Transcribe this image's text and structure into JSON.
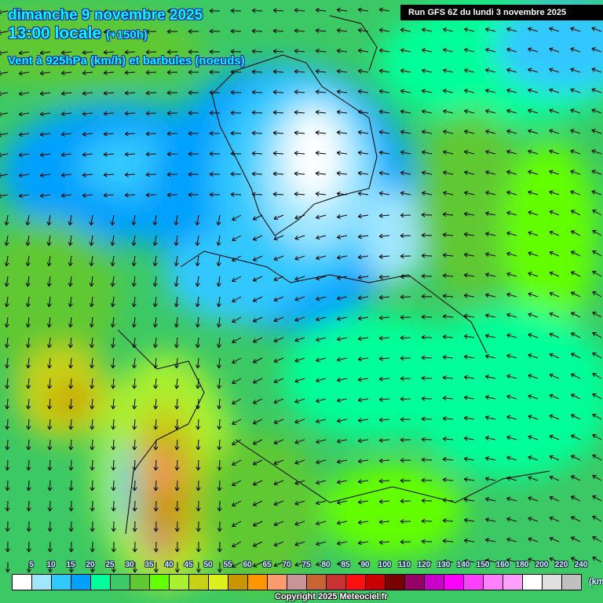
{
  "header": {
    "date": "dimanche 9 novembre 2025",
    "time": "13:00 locale",
    "lead": "(+150h)",
    "parameter": "Vent à 925hPa (km/h) et barbules (noeuds)",
    "run": "Run GFS 6Z du lundi 3 novembre 2025"
  },
  "legend": {
    "labels": [
      "5",
      "10",
      "15",
      "20",
      "25",
      "30",
      "35",
      "40",
      "45",
      "50",
      "55",
      "60",
      "65",
      "70",
      "75",
      "80",
      "85",
      "90",
      "100",
      "110",
      "120",
      "130",
      "140",
      "150",
      "160",
      "180",
      "200",
      "220",
      "240"
    ],
    "colors": [
      "#ffffff",
      "#a0e6ff",
      "#30c8ff",
      "#00a0ff",
      "#00ff9a",
      "#3cc864",
      "#60c832",
      "#64ff00",
      "#a8f030",
      "#c8d214",
      "#dcf01e",
      "#c89600",
      "#ff9600",
      "#ff9a6e",
      "#c89696",
      "#c86432",
      "#c83232",
      "#ff1010",
      "#c80000",
      "#780000",
      "#960064",
      "#c800c8",
      "#ff00ff",
      "#ff40ff",
      "#ff80ff",
      "#ffa0ff",
      "#ffffff",
      "#e0e0e0",
      "#c0c0c0"
    ],
    "unit": "(km/h)"
  },
  "footer": {
    "copyright": "Copyright 2025 Meteociel.fr"
  }
}
